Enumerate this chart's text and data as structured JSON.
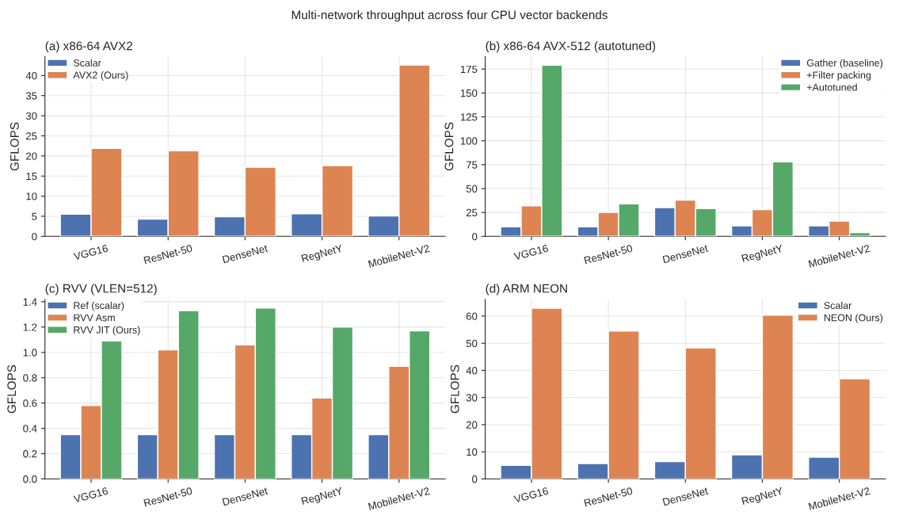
{
  "chart_data": [
    {
      "type": "bar",
      "title": "(a) x86-64 AVX2",
      "annotations": [
        "Multi-network throughput across four CPU vector backends"
      ],
      "ylabel": "GFLOPS",
      "categories": [
        "VGG16",
        "ResNet-50",
        "DenseNet",
        "RegNetY",
        "MobileNet-V2"
      ],
      "series": [
        {
          "name": "Scalar",
          "color": "#4c72b0",
          "values": [
            5.5,
            4.3,
            4.9,
            5.6,
            5.1
          ]
        },
        {
          "name": "AVX2 (Ours)",
          "color": "#dd8452",
          "values": [
            21.9,
            21.3,
            17.2,
            17.6,
            42.6
          ]
        }
      ],
      "ylim": [
        0,
        44.7
      ],
      "yticks": [
        0,
        5,
        10,
        15,
        20,
        25,
        30,
        35,
        40
      ],
      "grid": true,
      "legend": "top left"
    },
    {
      "type": "bar",
      "title": "(b) x86-64 AVX-512 (autotuned)",
      "ylabel": "GFLOPS",
      "categories": [
        "VGG16",
        "ResNet-50",
        "DenseNet",
        "RegNetY",
        "MobileNet-V2"
      ],
      "series": [
        {
          "name": "Gather (baseline)",
          "color": "#4c72b0",
          "values": [
            10,
            10,
            30,
            11,
            11
          ]
        },
        {
          "name": "+Filter packing",
          "color": "#dd8452",
          "values": [
            32,
            25,
            38,
            28,
            16
          ]
        },
        {
          "name": "+Autotuned",
          "color": "#55a868",
          "values": [
            179,
            34,
            29,
            78,
            4
          ]
        }
      ],
      "ylim": [
        0,
        188
      ],
      "yticks": [
        0,
        25,
        50,
        75,
        100,
        125,
        150,
        175
      ],
      "grid": true,
      "legend": "top right"
    },
    {
      "type": "bar",
      "title": "(c) RVV (VLEN=512)",
      "ylabel": "GFLOPS",
      "categories": [
        "VGG16",
        "ResNet-50",
        "DenseNet",
        "RegNetY",
        "MobileNet-V2"
      ],
      "series": [
        {
          "name": "Ref (scalar)",
          "color": "#4c72b0",
          "values": [
            0.35,
            0.35,
            0.35,
            0.35,
            0.35
          ]
        },
        {
          "name": "RVV Asm",
          "color": "#dd8452",
          "values": [
            0.58,
            1.02,
            1.06,
            0.64,
            0.89
          ]
        },
        {
          "name": "RVV JIT (Ours)",
          "color": "#55a868",
          "values": [
            1.09,
            1.33,
            1.35,
            1.2,
            1.17
          ]
        }
      ],
      "ylim": [
        0,
        1.42
      ],
      "yticks": [
        {
          "value": 0,
          "label": "0.0"
        },
        0.2,
        0.4,
        0.6,
        0.8,
        {
          "value": 1,
          "label": "1.0"
        },
        1.2,
        1.4
      ],
      "grid": true,
      "legend": "top left"
    },
    {
      "type": "bar",
      "title": "(d) ARM NEON",
      "ylabel": "GFLOPS",
      "categories": [
        "VGG16",
        "ResNet-50",
        "DenseNet",
        "RegNetY",
        "MobileNet-V2"
      ],
      "series": [
        {
          "name": "Scalar",
          "color": "#4c72b0",
          "values": [
            5.0,
            5.7,
            6.4,
            8.9,
            8.0
          ]
        },
        {
          "name": "NEON (Ours)",
          "color": "#dd8452",
          "values": [
            62.9,
            54.5,
            48.3,
            60.3,
            36.9
          ]
        }
      ],
      "ylim": [
        0,
        66.2
      ],
      "yticks": [
        0,
        10,
        20,
        30,
        40,
        50,
        60
      ],
      "grid": true,
      "legend": "top right"
    }
  ]
}
